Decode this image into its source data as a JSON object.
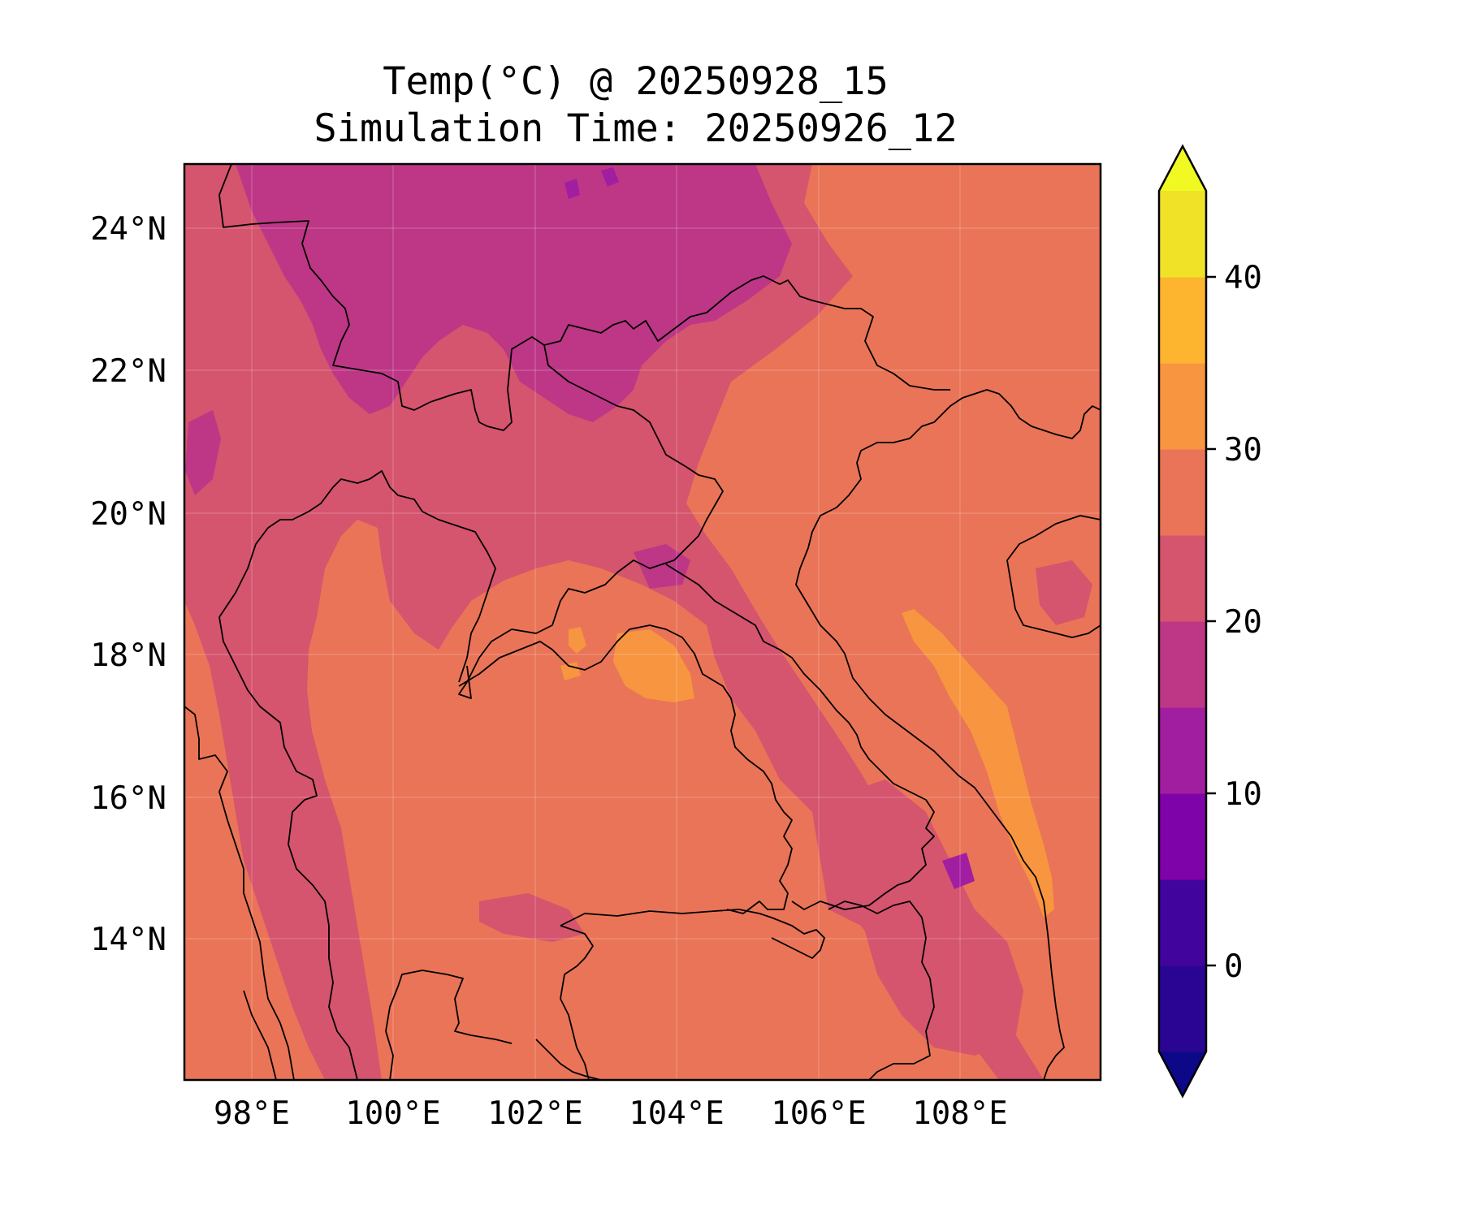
{
  "title": {
    "line1": "Temp(°C) @ 20250928_15",
    "line2": "Simulation Time: 20250926_12"
  },
  "map": {
    "lon_range": [
      97.0,
      110.0
    ],
    "lat_range": [
      12.0,
      25.0
    ],
    "lon_ticks": [
      "98°E",
      "100°E",
      "102°E",
      "104°E",
      "106°E",
      "108°E"
    ],
    "lat_ticks": [
      "24°N",
      "22°N",
      "20°N",
      "18°N",
      "16°N",
      "14°N"
    ],
    "gridlines": true
  },
  "colorbar": {
    "colormap": "plasma",
    "levels": [
      -5,
      0,
      5,
      10,
      15,
      20,
      25,
      30,
      35,
      40,
      45
    ],
    "colors": [
      "#0d0887",
      "#2a0593",
      "#41049d",
      "#7e03a8",
      "#a21ea0",
      "#bd3786",
      "#d5546e",
      "#ea7457",
      "#f89540",
      "#fdb42f",
      "#f0e227",
      "#f0f921"
    ],
    "tick_labels": [
      "0",
      "10",
      "20",
      "30",
      "40"
    ],
    "extend": "both"
  },
  "field_colors": {
    "below_15": "#a21ea0",
    "range_15_20": "#bd3786",
    "range_20_25": "#d5546e",
    "range_25_30": "#ea7457",
    "range_30_35": "#f89540",
    "range_35_40": "#fdb42f",
    "coastline": "#000000"
  }
}
